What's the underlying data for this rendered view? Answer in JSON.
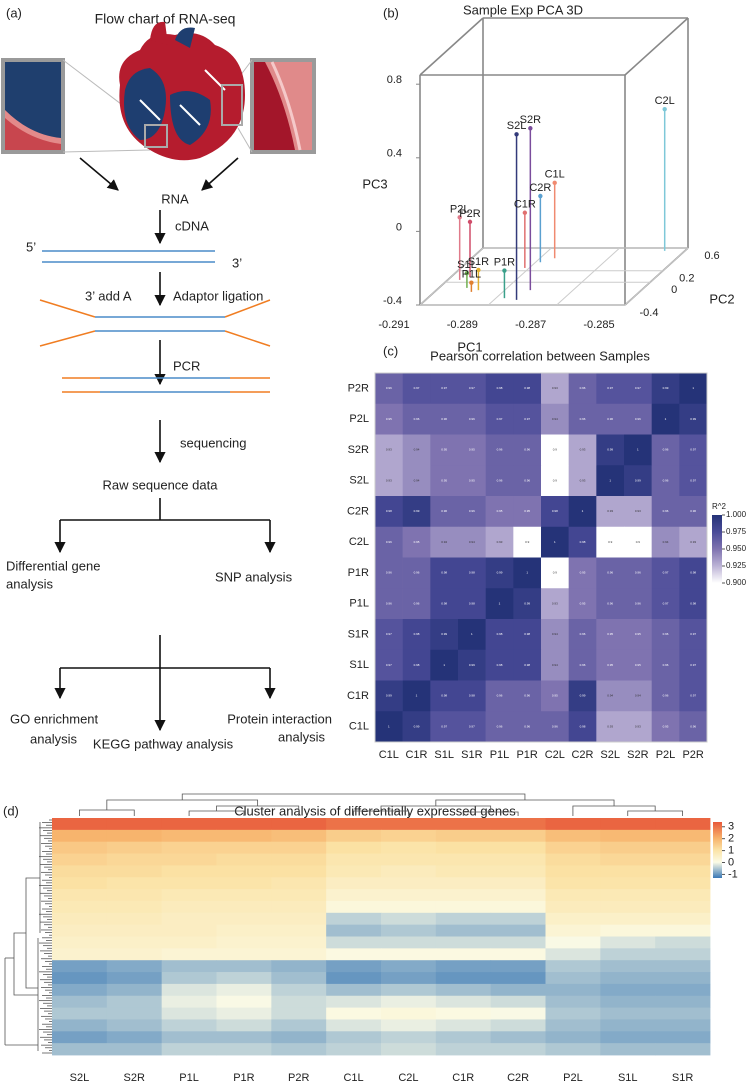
{
  "flowchart": {
    "panel_label": "(a)",
    "title": "Flow chart of RNA-seq",
    "rna": "RNA",
    "cdna": "cDNA",
    "end5": "5’",
    "end3": "3’",
    "add_a": "3’ add A",
    "adaptor": "Adaptor ligation",
    "pcr": "PCR",
    "sequencing": "sequencing",
    "raw": "Raw sequence data",
    "differential": [
      "Differential gene",
      "analysis"
    ],
    "snp": "SNP  analysis",
    "go": [
      "GO enrichment",
      "analysis"
    ],
    "protein": [
      "Protein interaction",
      "analysis"
    ],
    "kegg": "KEGG pathway analysis"
  },
  "chart_data": [
    {
      "type": "scatter3d",
      "panel_label": "(b)",
      "title": "Sample Exp PCA 3D",
      "xlabel": "PC1",
      "ylabel": "PC2",
      "zlabel": "PC3",
      "xlim": [
        -0.291,
        -0.285
      ],
      "ylim": [
        -0.4,
        0.6
      ],
      "zlim": [
        -0.4,
        0.85
      ],
      "xticks": [
        -0.291,
        -0.289,
        -0.287,
        -0.285
      ],
      "yticks": [
        -0.4,
        0,
        0.2,
        0.6
      ],
      "zticks": [
        -0.4,
        0,
        0.4,
        0.8
      ],
      "names": [
        "S2L",
        "S2R",
        "C1L",
        "C2R",
        "C1R",
        "P2L",
        "P2R",
        "P1R",
        "S1R",
        "S1L",
        "P1L",
        "C2L"
      ],
      "x": [
        -0.28834,
        -0.28825,
        -0.28857,
        -0.28886,
        -0.28913,
        -0.29065,
        -0.29044,
        -0.28875,
        -0.28977,
        -0.29018,
        -0.28992,
        -0.28559
      ],
      "y": [
        -0.31,
        -0.14,
        0.42,
        0.35,
        0.25,
        0.04,
        0.09,
        -0.28,
        -0.14,
        -0.1,
        -0.17,
        0.55
      ],
      "z": [
        0.5,
        0.48,
        0.01,
        -0.04,
        -0.1,
        -0.06,
        -0.1,
        -0.25,
        -0.29,
        -0.32,
        -0.35,
        0.37
      ],
      "colors": [
        "#333a7a",
        "#7a4c9c",
        "#f08a70",
        "#5aa0d0",
        "#e07070",
        "#e07a8a",
        "#d04d6a",
        "#3aa08a",
        "#e0b030",
        "#70b050",
        "#e08030",
        "#7ec8d8"
      ]
    },
    {
      "type": "heatmap",
      "panel_label": "(c)",
      "title": "Pearson correlation between Samples",
      "rows": [
        "P2R",
        "P2L",
        "S2R",
        "S2L",
        "C2R",
        "C2L",
        "P1R",
        "P1L",
        "S1R",
        "S1L",
        "C1R",
        "C1L"
      ],
      "columns": [
        "C1L",
        "C1R",
        "S1L",
        "S1R",
        "P1L",
        "P1R",
        "C2L",
        "C2R",
        "S2L",
        "S2R",
        "P2L",
        "P2R"
      ],
      "values": [
        [
          0.96,
          0.97,
          0.97,
          0.97,
          0.98,
          0.98,
          0.93,
          0.96,
          0.97,
          0.97,
          0.99,
          1
        ],
        [
          0.95,
          0.96,
          0.96,
          0.96,
          0.97,
          0.97,
          0.94,
          0.96,
          0.96,
          0.96,
          1,
          0.99
        ],
        [
          0.93,
          0.94,
          0.95,
          0.95,
          0.96,
          0.96,
          0.9,
          0.93,
          0.99,
          1,
          0.96,
          0.97
        ],
        [
          0.93,
          0.94,
          0.95,
          0.95,
          0.96,
          0.96,
          0.9,
          0.93,
          1,
          0.99,
          0.96,
          0.97
        ],
        [
          0.98,
          0.99,
          0.96,
          0.96,
          0.95,
          0.95,
          0.98,
          1,
          0.93,
          0.93,
          0.96,
          0.96
        ],
        [
          0.96,
          0.95,
          0.94,
          0.94,
          0.93,
          0.9,
          1,
          0.98,
          0.9,
          0.9,
          0.94,
          0.93
        ],
        [
          0.96,
          0.96,
          0.98,
          0.98,
          0.99,
          1,
          0.9,
          0.95,
          0.96,
          0.96,
          0.97,
          0.98
        ],
        [
          0.96,
          0.96,
          0.98,
          0.98,
          1,
          0.99,
          0.93,
          0.95,
          0.96,
          0.96,
          0.97,
          0.98
        ],
        [
          0.97,
          0.98,
          0.99,
          1,
          0.98,
          0.98,
          0.94,
          0.96,
          0.95,
          0.95,
          0.96,
          0.97
        ],
        [
          0.97,
          0.98,
          1,
          0.99,
          0.98,
          0.98,
          0.94,
          0.96,
          0.95,
          0.95,
          0.96,
          0.97
        ],
        [
          0.99,
          1,
          0.98,
          0.98,
          0.96,
          0.96,
          0.95,
          0.99,
          0.94,
          0.94,
          0.96,
          0.97
        ],
        [
          1,
          0.99,
          0.97,
          0.97,
          0.96,
          0.96,
          0.96,
          0.98,
          0.93,
          0.93,
          0.95,
          0.96
        ]
      ],
      "colorbar_title": "R^2",
      "colorbar_lim": [
        0.9,
        1
      ],
      "colorbar_ticks": [
        {
          "value": 1,
          "label": "1.000"
        },
        0.975,
        {
          "value": 0.95,
          "label": "0.950"
        },
        0.925,
        {
          "value": 0.9,
          "label": "0.900"
        }
      ]
    },
    {
      "type": "clustermap",
      "panel_label": "(d)",
      "title": "Cluster analysis of differentially expressed genes",
      "columns": [
        "S2L",
        "S2R",
        "P1L",
        "P1R",
        "P2R",
        "C1L",
        "C2L",
        "C1R",
        "C2R",
        "P2L",
        "S1L",
        "S1R"
      ],
      "values": [
        [
          3.2,
          3.2,
          3.2,
          3.2,
          3.2,
          3.0,
          3.0,
          3.0,
          3.0,
          3.2,
          3.2,
          3.2
        ],
        [
          2.0,
          2.0,
          1.9,
          1.9,
          1.8,
          1.5,
          1.4,
          1.5,
          1.5,
          1.8,
          1.9,
          1.9
        ],
        [
          1.6,
          1.5,
          1.4,
          1.4,
          1.4,
          1.1,
          1.0,
          1.1,
          1.1,
          1.4,
          1.5,
          1.5
        ],
        [
          1.4,
          1.3,
          1.3,
          1.2,
          1.2,
          0.9,
          0.9,
          0.9,
          0.9,
          1.2,
          1.3,
          1.3
        ],
        [
          1.2,
          1.2,
          1.1,
          1.1,
          1.1,
          0.8,
          0.7,
          0.8,
          0.8,
          1.1,
          1.1,
          1.1
        ],
        [
          1.1,
          1.0,
          1.0,
          1.0,
          0.9,
          0.6,
          0.6,
          0.6,
          0.6,
          1.0,
          1.0,
          1.0
        ],
        [
          0.9,
          0.9,
          0.8,
          0.8,
          0.8,
          0.4,
          0.4,
          0.4,
          0.4,
          0.8,
          0.8,
          0.8
        ],
        [
          0.8,
          0.8,
          0.7,
          0.7,
          0.7,
          0.2,
          0.2,
          0.2,
          0.2,
          0.7,
          0.7,
          0.7
        ],
        [
          0.7,
          0.7,
          0.6,
          0.6,
          0.6,
          -0.4,
          -0.3,
          -0.4,
          -0.4,
          0.5,
          0.5,
          0.5
        ],
        [
          0.6,
          0.6,
          0.6,
          0.5,
          0.5,
          -0.6,
          -0.5,
          -0.6,
          -0.6,
          0.3,
          0.2,
          0.2
        ],
        [
          0.5,
          0.5,
          0.5,
          0.4,
          0.4,
          -0.3,
          -0.3,
          -0.3,
          -0.3,
          0.0,
          -0.2,
          -0.3
        ],
        [
          0.4,
          0.4,
          0.3,
          0.3,
          0.3,
          0.1,
          0.1,
          0.1,
          0.1,
          -0.2,
          -0.4,
          -0.4
        ],
        [
          -0.9,
          -0.8,
          -0.6,
          -0.6,
          -0.7,
          -0.9,
          -0.8,
          -0.9,
          -0.9,
          -0.5,
          -0.6,
          -0.6
        ],
        [
          -1.0,
          -0.9,
          -0.5,
          -0.4,
          -0.6,
          -1.0,
          -0.9,
          -1.0,
          -1.0,
          -0.6,
          -0.7,
          -0.7
        ],
        [
          -0.8,
          -0.7,
          -0.2,
          -0.1,
          -0.4,
          -0.6,
          -0.5,
          -0.6,
          -0.7,
          -0.7,
          -0.8,
          -0.8
        ],
        [
          -0.6,
          -0.5,
          -0.1,
          0.0,
          -0.3,
          -0.2,
          -0.1,
          -0.2,
          -0.3,
          -0.6,
          -0.7,
          -0.7
        ],
        [
          -0.5,
          -0.5,
          -0.2,
          -0.1,
          -0.3,
          0.1,
          0.2,
          0.1,
          0.0,
          -0.5,
          -0.6,
          -0.6
        ],
        [
          -0.7,
          -0.6,
          -0.4,
          -0.3,
          -0.5,
          -0.2,
          -0.1,
          -0.2,
          -0.3,
          -0.6,
          -0.7,
          -0.7
        ],
        [
          -0.9,
          -0.8,
          -0.6,
          -0.6,
          -0.7,
          -0.5,
          -0.4,
          -0.5,
          -0.6,
          -0.7,
          -0.8,
          -0.8
        ],
        [
          -0.6,
          -0.6,
          -0.4,
          -0.4,
          -0.5,
          -0.4,
          -0.3,
          -0.4,
          -0.4,
          -0.5,
          -0.6,
          -0.6
        ]
      ],
      "colorbar_lim": [
        -1.3,
        3.4
      ],
      "colorbar_ticks": [
        3,
        2,
        1,
        0,
        -1
      ]
    }
  ]
}
